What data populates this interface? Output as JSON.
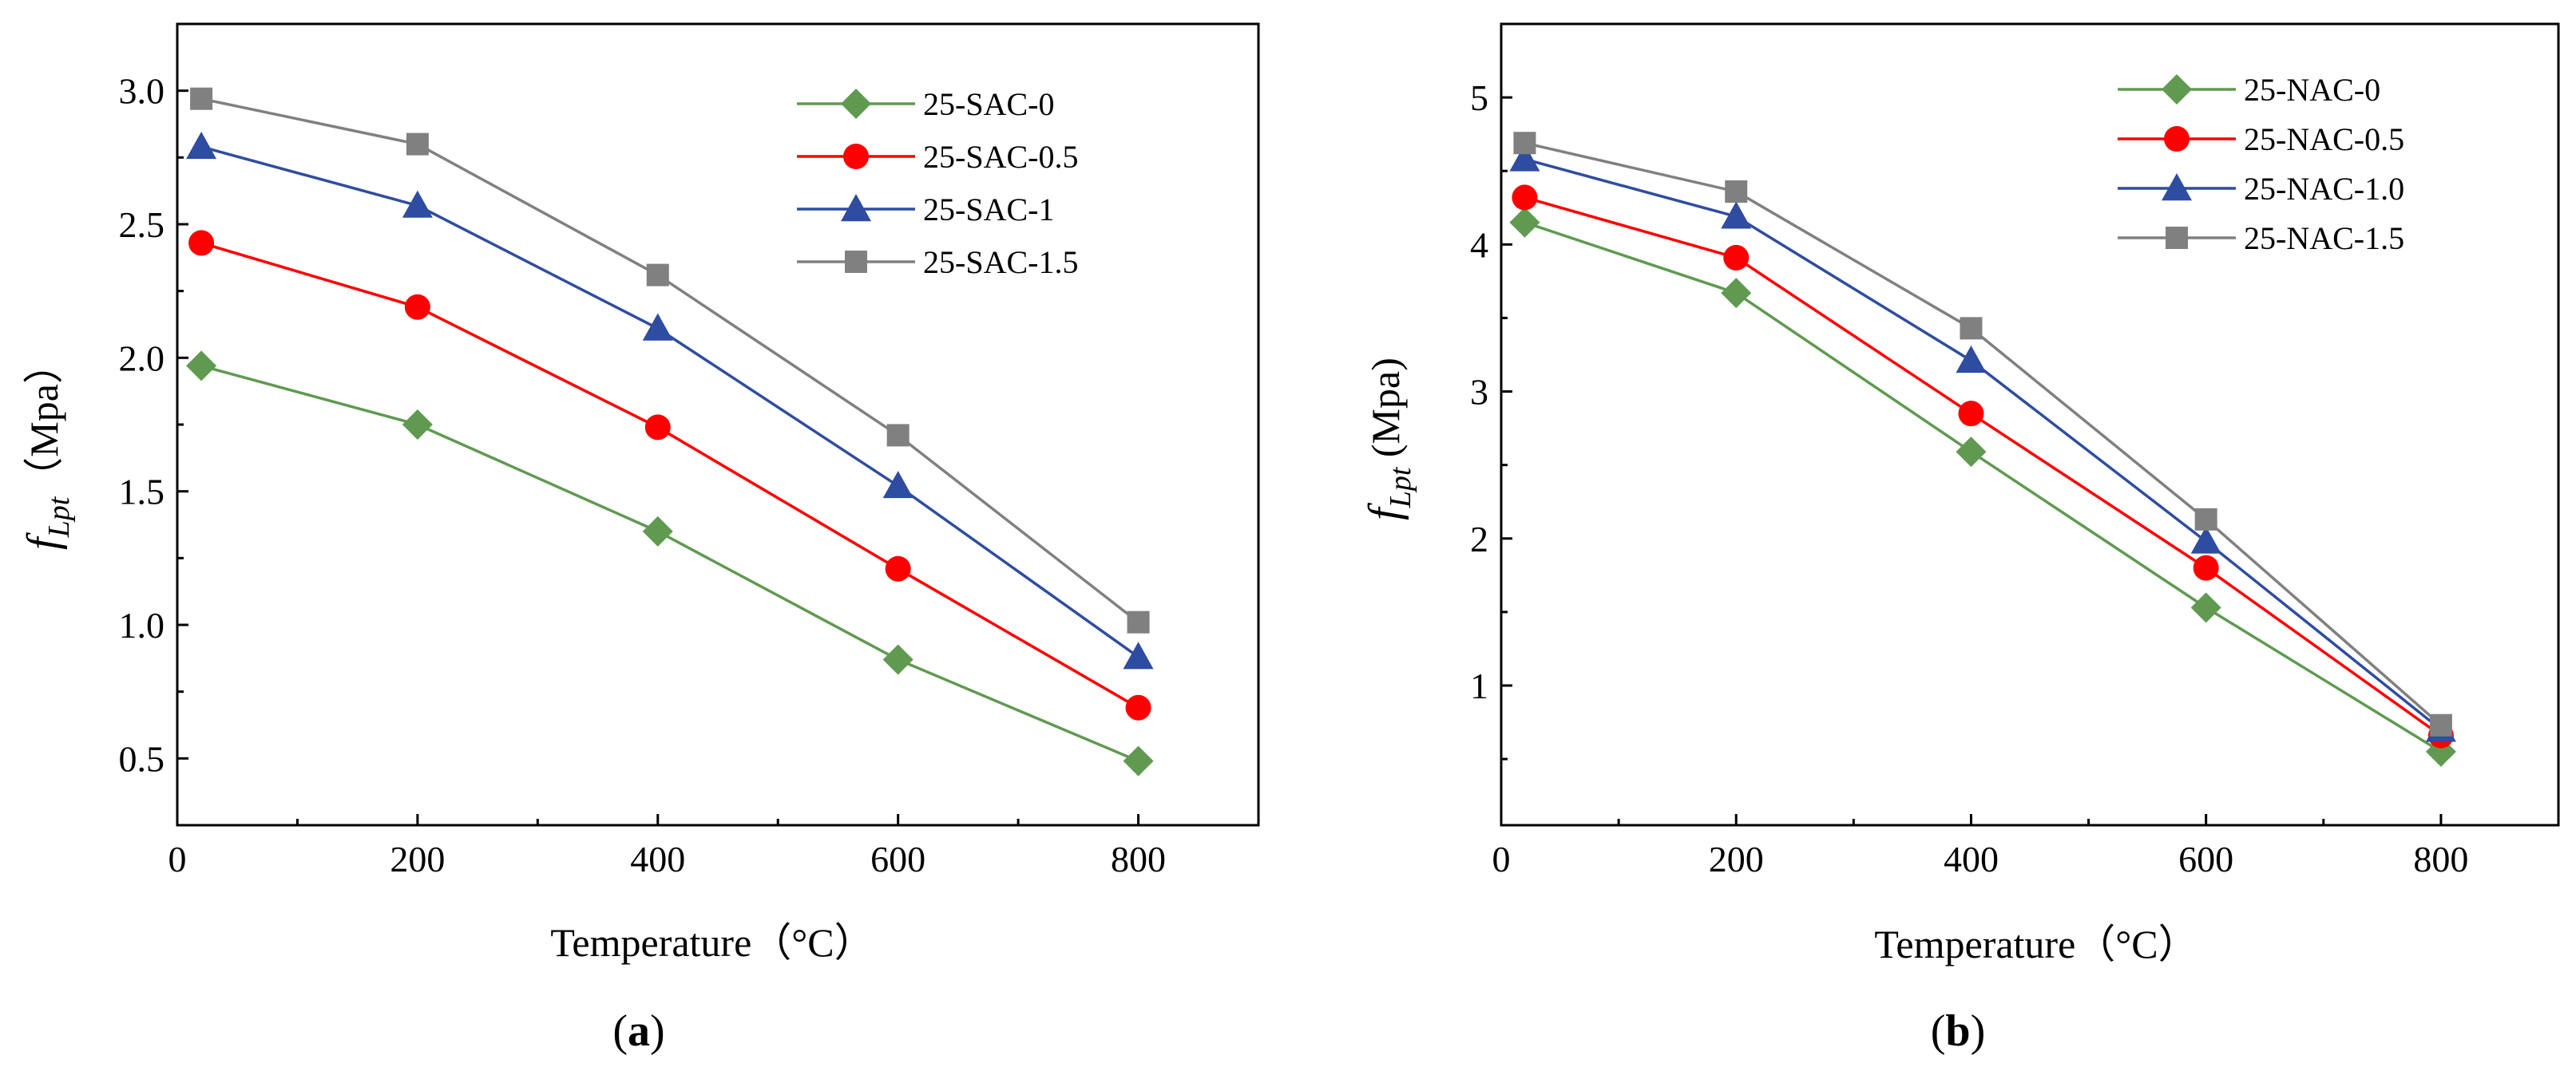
{
  "chart_data": [
    {
      "type": "line",
      "panel_label": "a",
      "xlabel": "Temperature（°C）",
      "ylabel_symbol": "f",
      "ylabel_subscript": "Lpt",
      "ylabel_unit": "（Mpa）",
      "xlim": [
        0,
        900
      ],
      "ylim": [
        0.25,
        3.25
      ],
      "xticks": [
        0,
        200,
        400,
        600,
        800
      ],
      "xtick_labels": [
        "0",
        "200",
        "400",
        "600",
        "800"
      ],
      "yticks": [
        0.5,
        1.0,
        1.5,
        2.0,
        2.5,
        3.0
      ],
      "ytick_labels": [
        "0.5",
        "1.0",
        "1.5",
        "2.0",
        "2.5",
        "3.0"
      ],
      "legend_position": "top-right",
      "grid": false,
      "x": [
        20,
        200,
        400,
        600,
        800
      ],
      "series": [
        {
          "name": "25-SAC-0",
          "color": "#5f9a50",
          "marker": "diamond",
          "values": [
            1.97,
            1.75,
            1.35,
            0.87,
            0.49
          ]
        },
        {
          "name": "25-SAC-0.5",
          "color": "#ff0000",
          "marker": "circle",
          "values": [
            2.43,
            2.19,
            1.74,
            1.21,
            0.69
          ]
        },
        {
          "name": "25-SAC-1",
          "color": "#2e4da0",
          "marker": "triangle",
          "values": [
            2.79,
            2.57,
            2.11,
            1.52,
            0.88
          ]
        },
        {
          "name": "25-SAC-1.5",
          "color": "#808080",
          "marker": "square",
          "values": [
            2.97,
            2.8,
            2.31,
            1.71,
            1.01
          ]
        }
      ]
    },
    {
      "type": "line",
      "panel_label": "b",
      "xlabel": "Temperature（°C）",
      "ylabel_symbol": "f",
      "ylabel_subscript": "Lpt",
      "ylabel_unit": " (Mpa)",
      "xlim": [
        0,
        900
      ],
      "ylim": [
        0.05,
        5.5
      ],
      "xticks": [
        0,
        200,
        400,
        600,
        800
      ],
      "xtick_labels": [
        "0",
        "200",
        "400",
        "600",
        "800"
      ],
      "yticks": [
        1,
        2,
        3,
        4,
        5
      ],
      "ytick_labels": [
        "1",
        "2",
        "3",
        "4",
        "5"
      ],
      "legend_position": "top-right",
      "grid": false,
      "x": [
        20,
        200,
        400,
        600,
        800
      ],
      "series": [
        {
          "name": "25-NAC-0",
          "color": "#5f9a50",
          "marker": "diamond",
          "values": [
            4.15,
            3.67,
            2.59,
            1.53,
            0.55
          ]
        },
        {
          "name": "25-NAC-0.5",
          "color": "#ff0000",
          "marker": "circle",
          "values": [
            4.32,
            3.91,
            2.85,
            1.8,
            0.66
          ]
        },
        {
          "name": "25-NAC-1.0",
          "color": "#2e4da0",
          "marker": "triangle",
          "values": [
            4.58,
            4.19,
            3.21,
            1.98,
            0.7
          ]
        },
        {
          "name": "25-NAC-1.5",
          "color": "#808080",
          "marker": "square",
          "values": [
            4.69,
            4.36,
            3.43,
            2.13,
            0.73
          ]
        }
      ]
    }
  ]
}
